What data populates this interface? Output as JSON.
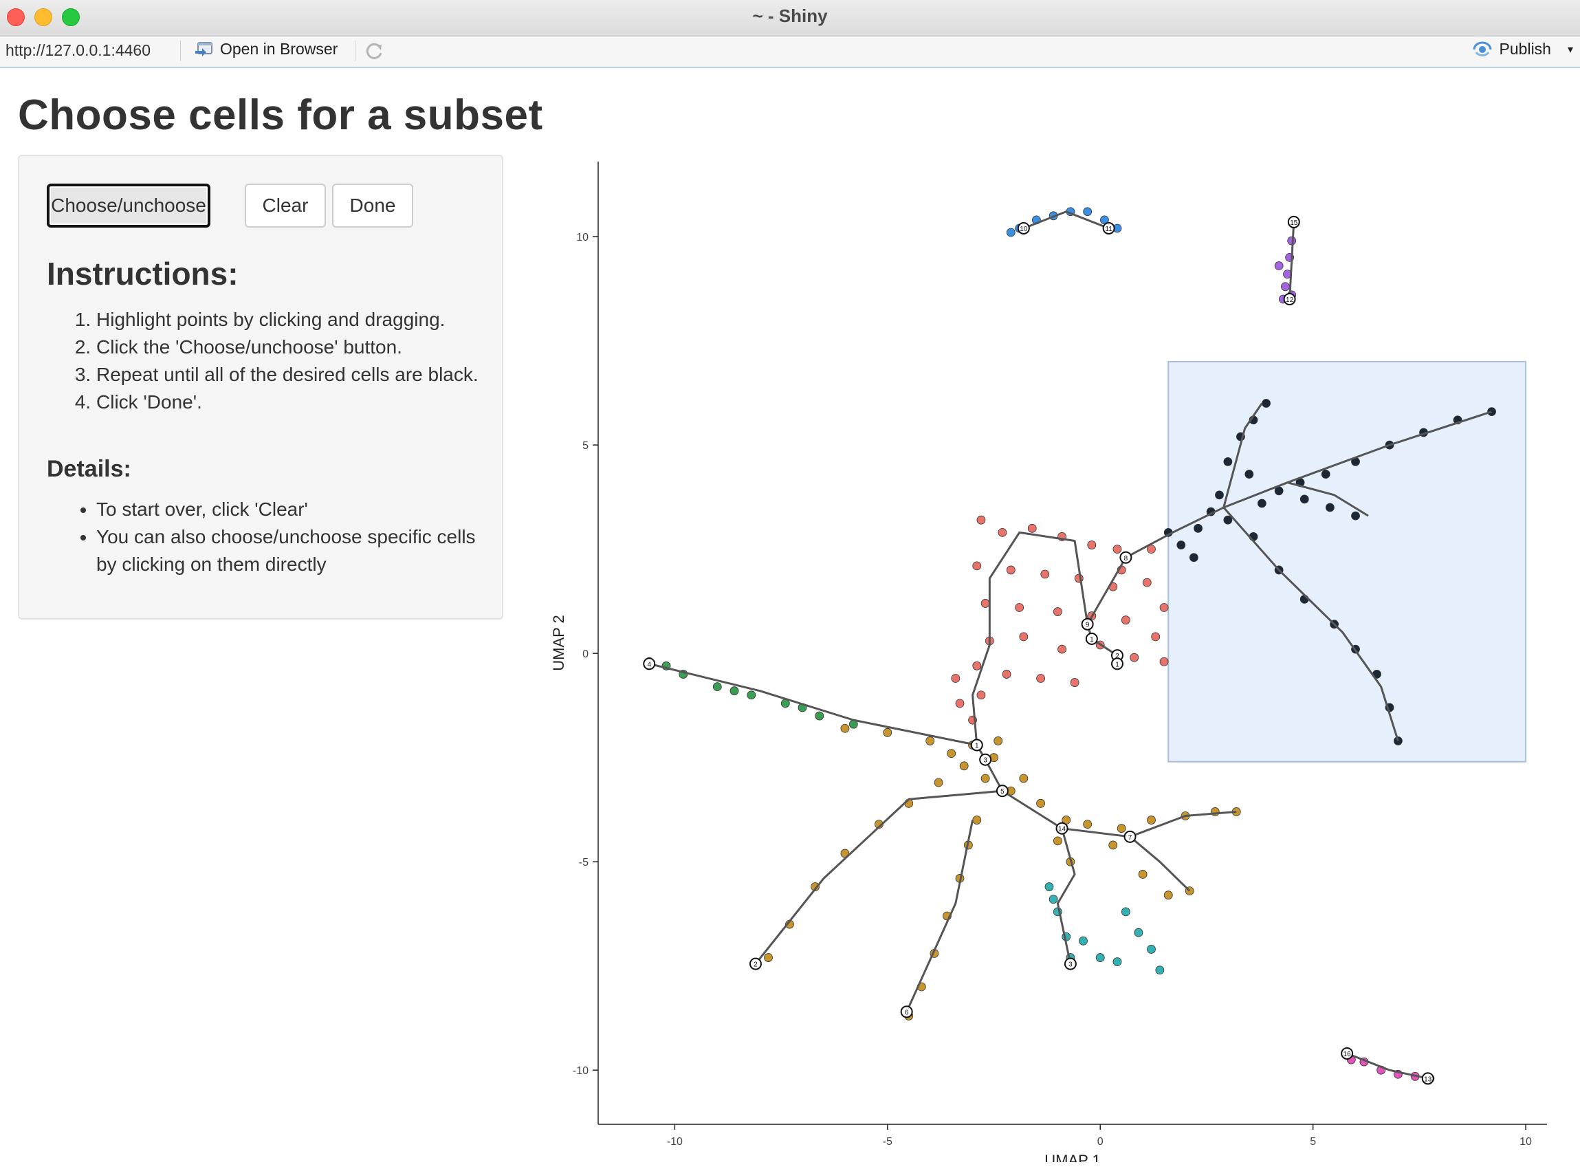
{
  "window": {
    "title": "~ - Shiny"
  },
  "toolbar": {
    "url": "http://127.0.0.1:4460",
    "open_in_browser": "Open in Browser",
    "publish": "Publish"
  },
  "page": {
    "title": "Choose cells for a subset"
  },
  "buttons": {
    "choose": "Choose/unchoose",
    "clear": "Clear",
    "done": "Done"
  },
  "instructions": {
    "heading": "Instructions:",
    "steps": [
      "Highlight points by clicking and dragging.",
      "Click the 'Choose/unchoose' button.",
      "Repeat until all of the desired cells are black.",
      "Click 'Done'."
    ]
  },
  "details": {
    "heading": "Details:",
    "items": [
      "To start over, click 'Clear'",
      "You can also choose/unchoose specific cells by clicking on them directly"
    ]
  },
  "chart_data": {
    "type": "scatter",
    "xlabel": "UMAP 1",
    "ylabel": "UMAP 2",
    "xlim": [
      -11.8,
      10.5
    ],
    "ylim": [
      -11.3,
      11.8
    ],
    "xticks": [
      -10,
      -5,
      0,
      5,
      10
    ],
    "yticks": [
      10,
      5,
      0,
      -5,
      -10
    ],
    "selection_box": {
      "x": [
        1.6,
        10.0
      ],
      "y": [
        -2.6,
        7.0
      ]
    },
    "colors": {
      "red": "#e8736b",
      "gold": "#c6952e",
      "green": "#3a9e55",
      "teal": "#35b1b4",
      "blue": "#3a8fe0",
      "purple": "#a366e0",
      "pink": "#e055b8",
      "chosen": "#1c2836",
      "selection_fill": "#e6f0fc",
      "selection_stroke": "#a9bfd9"
    },
    "clusters": [
      {
        "color": "red",
        "points": [
          [
            -2.8,
            3.2
          ],
          [
            -2.3,
            2.9
          ],
          [
            -1.6,
            3.0
          ],
          [
            -0.9,
            2.8
          ],
          [
            -0.2,
            2.6
          ],
          [
            0.4,
            2.5
          ],
          [
            -2.9,
            2.1
          ],
          [
            -2.1,
            2.0
          ],
          [
            -1.3,
            1.9
          ],
          [
            -0.5,
            1.8
          ],
          [
            0.3,
            1.6
          ],
          [
            1.1,
            1.7
          ],
          [
            1.5,
            1.1
          ],
          [
            -2.7,
            1.2
          ],
          [
            -1.9,
            1.1
          ],
          [
            -1.0,
            1.0
          ],
          [
            -0.2,
            0.9
          ],
          [
            0.6,
            0.8
          ],
          [
            1.3,
            0.4
          ],
          [
            -2.6,
            0.3
          ],
          [
            -1.8,
            0.4
          ],
          [
            -0.9,
            0.1
          ],
          [
            0.0,
            0.2
          ],
          [
            0.8,
            -0.1
          ],
          [
            1.5,
            -0.2
          ],
          [
            -3.4,
            -0.6
          ],
          [
            -2.9,
            -0.3
          ],
          [
            -2.2,
            -0.5
          ],
          [
            -1.4,
            -0.6
          ],
          [
            -0.6,
            -0.7
          ],
          [
            -3.3,
            -1.2
          ],
          [
            -2.8,
            -1.0
          ],
          [
            -3.0,
            -1.6
          ],
          [
            0.5,
            2.0
          ],
          [
            1.2,
            2.5
          ]
        ]
      },
      {
        "color": "gold",
        "points": [
          [
            -6.0,
            -1.8
          ],
          [
            -5.0,
            -1.9
          ],
          [
            -4.0,
            -2.1
          ],
          [
            -3.0,
            -2.2
          ],
          [
            -2.5,
            -2.5
          ],
          [
            -3.2,
            -2.7
          ],
          [
            -2.7,
            -3.0
          ],
          [
            -2.1,
            -3.3
          ],
          [
            -3.8,
            -3.1
          ],
          [
            -1.4,
            -3.6
          ],
          [
            -0.8,
            -4.0
          ],
          [
            -0.3,
            -4.1
          ],
          [
            0.5,
            -4.2
          ],
          [
            1.2,
            -4.0
          ],
          [
            2.0,
            -3.9
          ],
          [
            2.7,
            -3.8
          ],
          [
            3.2,
            -3.8
          ],
          [
            0.3,
            -4.6
          ],
          [
            1.0,
            -5.3
          ],
          [
            1.6,
            -5.8
          ],
          [
            2.1,
            -5.7
          ],
          [
            -4.5,
            -3.6
          ],
          [
            -5.2,
            -4.1
          ],
          [
            -6.0,
            -4.8
          ],
          [
            -6.7,
            -5.6
          ],
          [
            -7.3,
            -6.5
          ],
          [
            -7.8,
            -7.3
          ],
          [
            -2.9,
            -4.0
          ],
          [
            -3.1,
            -4.6
          ],
          [
            -3.3,
            -5.4
          ],
          [
            -3.6,
            -6.3
          ],
          [
            -3.9,
            -7.2
          ],
          [
            -4.2,
            -8.0
          ],
          [
            -4.5,
            -8.7
          ],
          [
            -1.0,
            -4.5
          ],
          [
            -0.7,
            -5.0
          ],
          [
            -3.5,
            -2.4
          ],
          [
            -2.4,
            -2.1
          ],
          [
            -1.8,
            -3.0
          ]
        ]
      },
      {
        "color": "green",
        "points": [
          [
            -10.6,
            -0.2
          ],
          [
            -9.8,
            -0.5
          ],
          [
            -9.0,
            -0.8
          ],
          [
            -8.2,
            -1.0
          ],
          [
            -7.4,
            -1.2
          ],
          [
            -6.6,
            -1.5
          ],
          [
            -5.8,
            -1.7
          ],
          [
            -10.2,
            -0.3
          ],
          [
            -8.6,
            -0.9
          ],
          [
            -7.0,
            -1.3
          ]
        ]
      },
      {
        "color": "teal",
        "points": [
          [
            -1.2,
            -5.6
          ],
          [
            -1.0,
            -6.2
          ],
          [
            -0.8,
            -6.8
          ],
          [
            -0.7,
            -7.3
          ],
          [
            -0.4,
            -6.9
          ],
          [
            0.0,
            -7.3
          ],
          [
            0.4,
            -7.4
          ],
          [
            0.6,
            -6.2
          ],
          [
            0.9,
            -6.7
          ],
          [
            1.2,
            -7.1
          ],
          [
            1.4,
            -7.6
          ],
          [
            -1.1,
            -5.9
          ]
        ]
      },
      {
        "color": "blue",
        "points": [
          [
            -1.9,
            10.2
          ],
          [
            -1.5,
            10.4
          ],
          [
            -1.1,
            10.5
          ],
          [
            -0.7,
            10.6
          ],
          [
            -0.3,
            10.6
          ],
          [
            0.1,
            10.4
          ],
          [
            0.4,
            10.2
          ],
          [
            -2.1,
            10.1
          ]
        ]
      },
      {
        "color": "purple",
        "points": [
          [
            4.55,
            10.3
          ],
          [
            4.5,
            9.9
          ],
          [
            4.45,
            9.5
          ],
          [
            4.4,
            9.1
          ],
          [
            4.35,
            8.8
          ],
          [
            4.3,
            8.5
          ],
          [
            4.2,
            9.3
          ],
          [
            4.5,
            8.6
          ]
        ]
      },
      {
        "color": "pink",
        "points": [
          [
            5.8,
            -9.6
          ],
          [
            6.2,
            -9.8
          ],
          [
            6.6,
            -10.0
          ],
          [
            7.0,
            -10.1
          ],
          [
            7.4,
            -10.15
          ],
          [
            7.75,
            -10.2
          ],
          [
            5.9,
            -9.75
          ]
        ]
      },
      {
        "color": "chosen",
        "points": [
          [
            1.6,
            2.9
          ],
          [
            1.9,
            2.6
          ],
          [
            2.3,
            3.0
          ],
          [
            2.6,
            3.4
          ],
          [
            2.8,
            3.8
          ],
          [
            3.0,
            4.6
          ],
          [
            3.3,
            5.2
          ],
          [
            3.6,
            5.6
          ],
          [
            3.9,
            6.0
          ],
          [
            3.5,
            4.3
          ],
          [
            3.8,
            3.6
          ],
          [
            4.2,
            3.9
          ],
          [
            4.7,
            4.1
          ],
          [
            5.3,
            4.3
          ],
          [
            6.0,
            4.6
          ],
          [
            6.8,
            5.0
          ],
          [
            7.6,
            5.3
          ],
          [
            8.4,
            5.6
          ],
          [
            9.2,
            5.8
          ],
          [
            4.8,
            3.7
          ],
          [
            5.4,
            3.5
          ],
          [
            6.0,
            3.3
          ],
          [
            3.6,
            2.8
          ],
          [
            4.2,
            2.0
          ],
          [
            4.8,
            1.3
          ],
          [
            5.5,
            0.7
          ],
          [
            6.0,
            0.1
          ],
          [
            6.5,
            -0.5
          ],
          [
            6.8,
            -1.3
          ],
          [
            7.0,
            -2.1
          ],
          [
            2.2,
            2.3
          ],
          [
            3.0,
            3.2
          ]
        ]
      }
    ],
    "trajectory_nodes": [
      {
        "x": -10.6,
        "y": -0.25,
        "label": "4"
      },
      {
        "x": -1.8,
        "y": 10.2,
        "label": "10"
      },
      {
        "x": 0.2,
        "y": 10.2,
        "label": "11"
      },
      {
        "x": 4.55,
        "y": 10.35,
        "label": "15"
      },
      {
        "x": 4.45,
        "y": 8.5,
        "label": "12"
      },
      {
        "x": 0.6,
        "y": 2.3,
        "label": "8"
      },
      {
        "x": -0.3,
        "y": 0.7,
        "label": "9"
      },
      {
        "x": -0.2,
        "y": 0.35,
        "label": "1"
      },
      {
        "x": 0.4,
        "y": -0.05,
        "label": "2"
      },
      {
        "x": 0.4,
        "y": -0.25,
        "label": "1"
      },
      {
        "x": -2.9,
        "y": -2.2,
        "label": "1"
      },
      {
        "x": -2.7,
        "y": -2.55,
        "label": "3"
      },
      {
        "x": -2.3,
        "y": -3.3,
        "label": "5"
      },
      {
        "x": -0.9,
        "y": -4.2,
        "label": "14"
      },
      {
        "x": 0.7,
        "y": -4.4,
        "label": "7"
      },
      {
        "x": -8.1,
        "y": -7.45,
        "label": "2"
      },
      {
        "x": -4.55,
        "y": -8.6,
        "label": "6"
      },
      {
        "x": -0.7,
        "y": -7.45,
        "label": "3"
      },
      {
        "x": 5.8,
        "y": -9.6,
        "label": "16"
      },
      {
        "x": 7.7,
        "y": -10.2,
        "label": "13"
      }
    ],
    "trajectory_paths": [
      [
        [
          -10.6,
          -0.25
        ],
        [
          -8.0,
          -0.9
        ],
        [
          -5.8,
          -1.6
        ],
        [
          -2.9,
          -2.2
        ]
      ],
      [
        [
          -2.9,
          -2.2
        ],
        [
          -3.0,
          -1.0
        ],
        [
          -2.6,
          0.2
        ],
        [
          -2.6,
          1.8
        ],
        [
          -1.9,
          2.9
        ],
        [
          -0.6,
          2.7
        ],
        [
          -0.3,
          0.7
        ]
      ],
      [
        [
          -0.3,
          0.7
        ],
        [
          -0.2,
          0.35
        ],
        [
          0.4,
          -0.05
        ]
      ],
      [
        [
          -0.3,
          0.7
        ],
        [
          0.6,
          2.3
        ],
        [
          1.7,
          2.9
        ],
        [
          2.9,
          3.5
        ],
        [
          4.4,
          4.1
        ],
        [
          6.8,
          5.0
        ],
        [
          9.2,
          5.8
        ]
      ],
      [
        [
          2.9,
          3.5
        ],
        [
          3.4,
          5.4
        ],
        [
          3.8,
          6.0
        ]
      ],
      [
        [
          4.4,
          4.1
        ],
        [
          5.5,
          3.8
        ],
        [
          6.3,
          3.3
        ]
      ],
      [
        [
          2.9,
          3.5
        ],
        [
          4.2,
          2.0
        ],
        [
          5.7,
          0.5
        ],
        [
          6.6,
          -0.8
        ],
        [
          7.0,
          -2.1
        ]
      ],
      [
        [
          -2.9,
          -2.2
        ],
        [
          -2.7,
          -2.55
        ],
        [
          -2.3,
          -3.3
        ],
        [
          -0.9,
          -4.2
        ],
        [
          0.7,
          -4.4
        ],
        [
          2.0,
          -3.9
        ],
        [
          3.2,
          -3.8
        ]
      ],
      [
        [
          -2.3,
          -3.3
        ],
        [
          -4.5,
          -3.5
        ],
        [
          -6.5,
          -5.4
        ],
        [
          -8.1,
          -7.45
        ]
      ],
      [
        [
          -3.0,
          -4.0
        ],
        [
          -3.4,
          -6.0
        ],
        [
          -4.55,
          -8.6
        ]
      ],
      [
        [
          0.7,
          -4.4
        ],
        [
          1.4,
          -5.0
        ],
        [
          2.1,
          -5.7
        ]
      ],
      [
        [
          -0.9,
          -4.2
        ],
        [
          -0.6,
          -5.3
        ],
        [
          -1.0,
          -6.0
        ],
        [
          -0.7,
          -7.45
        ]
      ],
      [
        [
          -1.8,
          10.2
        ],
        [
          -0.8,
          10.6
        ],
        [
          0.2,
          10.2
        ]
      ],
      [
        [
          4.55,
          10.35
        ],
        [
          4.45,
          8.5
        ]
      ],
      [
        [
          5.8,
          -9.6
        ],
        [
          6.8,
          -10.0
        ],
        [
          7.7,
          -10.2
        ]
      ]
    ]
  }
}
